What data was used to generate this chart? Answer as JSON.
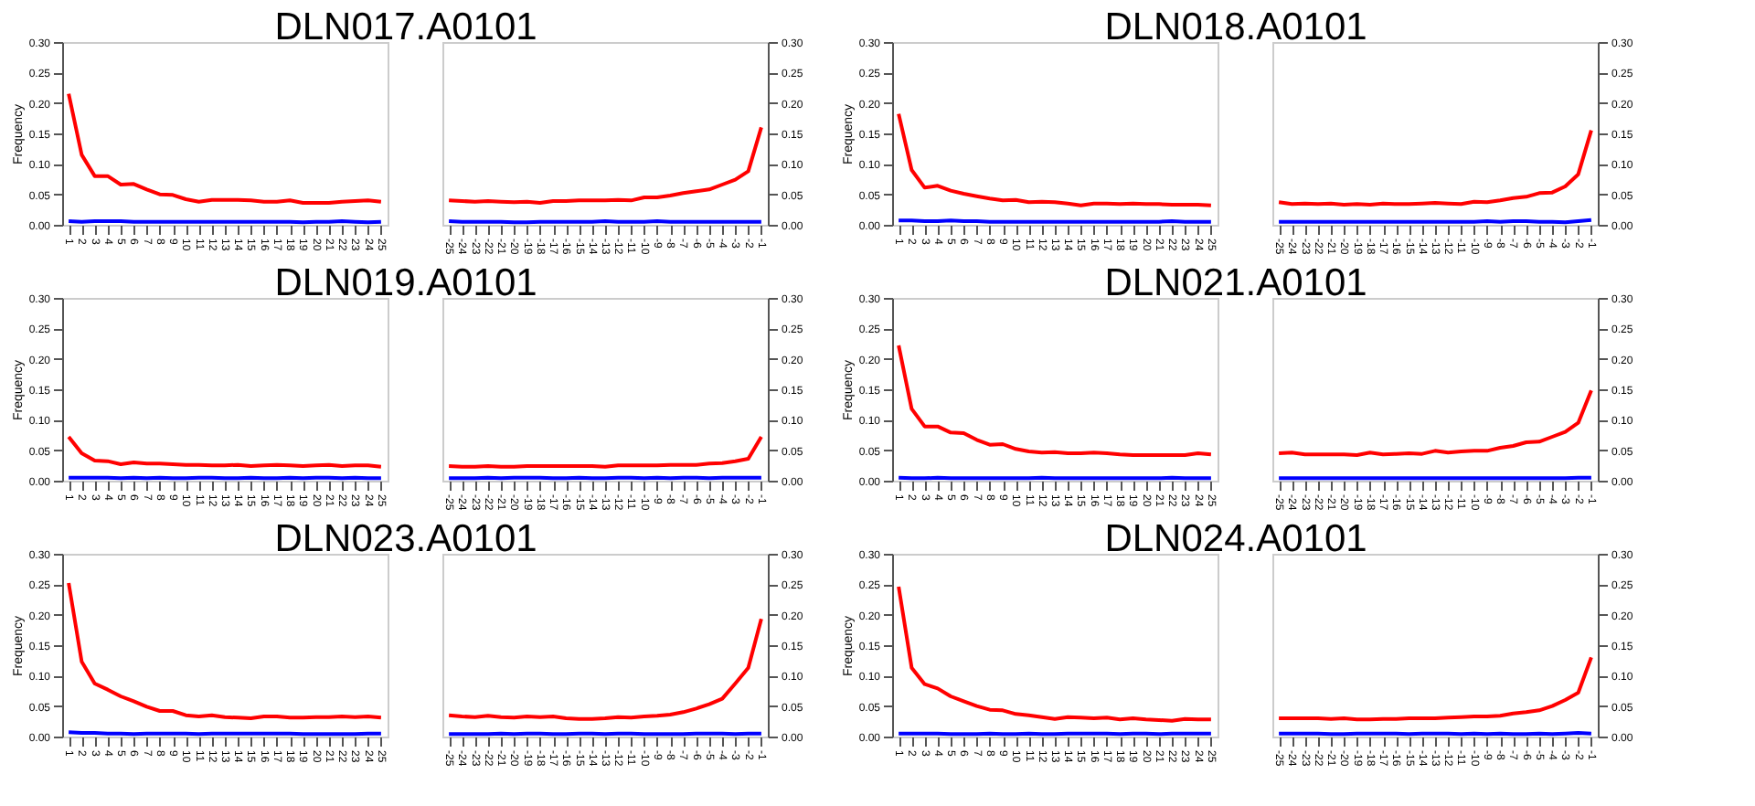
{
  "chart_data": [
    {
      "type": "line",
      "title": "DLN017.A0101",
      "ylabel": "Frequency",
      "categories": [
        "1",
        "2",
        "3",
        "4",
        "5",
        "6",
        "7",
        "8",
        "9",
        "10",
        "11",
        "12",
        "13",
        "14",
        "15",
        "16",
        "17",
        "18",
        "19",
        "20",
        "21",
        "22",
        "23",
        "24",
        "25"
      ],
      "ylim": [
        0,
        0.3
      ],
      "yticks": [
        {
          "value": 0,
          "label": "0.00"
        },
        0.05,
        {
          "value": 0.1,
          "label": "0.10"
        },
        0.15,
        {
          "value": 0.2,
          "label": "0.20"
        },
        0.25,
        {
          "value": 0.3,
          "label": "0.30"
        }
      ],
      "series": [
        {
          "color": "#0000ff",
          "values": [
            0.006,
            0.005,
            0.006,
            0.006,
            0.006,
            0.005,
            0.005,
            0.005,
            0.005,
            0.005,
            0.005,
            0.005,
            0.005,
            0.005,
            0.005,
            0.005,
            0.005,
            0.005,
            0.004,
            0.005,
            0.005,
            0.006,
            0.005,
            0.004,
            0.005
          ]
        },
        {
          "color": "#ff0000",
          "values": [
            0.215,
            0.115,
            0.08,
            0.08,
            0.066,
            0.067,
            0.058,
            0.05,
            0.049,
            0.042,
            0.038,
            0.041,
            0.041,
            0.041,
            0.04,
            0.038,
            0.038,
            0.04,
            0.036,
            0.036,
            0.036,
            0.038,
            0.039,
            0.04,
            0.038
          ]
        }
      ]
    },
    {
      "type": "line",
      "categories": [
        "-25",
        "-24",
        "-23",
        "-22",
        "-21",
        "-20",
        "-19",
        "-18",
        "-17",
        "-16",
        "-15",
        "-14",
        "-13",
        "-12",
        "-11",
        "-10",
        "-9",
        "-8",
        "-7",
        "-6",
        "-5",
        "-4",
        "-3",
        "-2",
        "-1"
      ],
      "ylim": [
        0,
        0.3
      ],
      "yticks": [
        {
          "value": 0,
          "label": "0.00"
        },
        0.05,
        {
          "value": 0.1,
          "label": "0.10"
        },
        0.15,
        {
          "value": 0.2,
          "label": "0.20"
        },
        0.25,
        {
          "value": 0.3,
          "label": "0.30"
        }
      ],
      "series": [
        {
          "color": "#0000ff",
          "values": [
            0.006,
            0.005,
            0.005,
            0.005,
            0.005,
            0.004,
            0.004,
            0.005,
            0.005,
            0.005,
            0.005,
            0.005,
            0.006,
            0.005,
            0.005,
            0.005,
            0.006,
            0.005,
            0.005,
            0.005,
            0.005,
            0.005,
            0.005,
            0.005,
            0.005
          ]
        },
        {
          "color": "#ff0000",
          "values": [
            0.04,
            0.039,
            0.038,
            0.039,
            0.038,
            0.037,
            0.038,
            0.036,
            0.039,
            0.039,
            0.04,
            0.04,
            0.04,
            0.041,
            0.04,
            0.045,
            0.045,
            0.048,
            0.052,
            0.055,
            0.058,
            0.066,
            0.074,
            0.088,
            0.16
          ]
        }
      ]
    },
    {
      "type": "line",
      "title": "DLN018.A0101",
      "ylabel": "Frequency",
      "categories": [
        "1",
        "2",
        "3",
        "4",
        "5",
        "6",
        "7",
        "8",
        "9",
        "10",
        "11",
        "12",
        "13",
        "14",
        "15",
        "16",
        "17",
        "18",
        "19",
        "20",
        "21",
        "22",
        "23",
        "24",
        "25"
      ],
      "ylim": [
        0,
        0.3
      ],
      "yticks": [
        {
          "value": 0,
          "label": "0.00"
        },
        0.05,
        {
          "value": 0.1,
          "label": "0.10"
        },
        0.15,
        {
          "value": 0.2,
          "label": "0.20"
        },
        0.25,
        {
          "value": 0.3,
          "label": "0.30"
        }
      ],
      "series": [
        {
          "color": "#0000ff",
          "values": [
            0.007,
            0.007,
            0.006,
            0.006,
            0.007,
            0.006,
            0.006,
            0.005,
            0.005,
            0.005,
            0.005,
            0.005,
            0.005,
            0.005,
            0.005,
            0.005,
            0.005,
            0.005,
            0.005,
            0.005,
            0.005,
            0.006,
            0.005,
            0.005,
            0.005
          ]
        },
        {
          "color": "#ff0000",
          "values": [
            0.182,
            0.09,
            0.061,
            0.064,
            0.056,
            0.051,
            0.047,
            0.043,
            0.04,
            0.041,
            0.037,
            0.038,
            0.037,
            0.035,
            0.032,
            0.035,
            0.035,
            0.034,
            0.035,
            0.034,
            0.034,
            0.033,
            0.033,
            0.033,
            0.032
          ]
        }
      ]
    },
    {
      "type": "line",
      "categories": [
        "-25",
        "-24",
        "-23",
        "-22",
        "-21",
        "-20",
        "-19",
        "-18",
        "-17",
        "-16",
        "-15",
        "-14",
        "-13",
        "-12",
        "-11",
        "-10",
        "-9",
        "-8",
        "-7",
        "-6",
        "-5",
        "-4",
        "-3",
        "-2",
        "-1"
      ],
      "ylim": [
        0,
        0.3
      ],
      "yticks": [
        {
          "value": 0,
          "label": "0.00"
        },
        0.05,
        {
          "value": 0.1,
          "label": "0.10"
        },
        0.15,
        {
          "value": 0.2,
          "label": "0.20"
        },
        0.25,
        {
          "value": 0.3,
          "label": "0.30"
        }
      ],
      "series": [
        {
          "color": "#0000ff",
          "values": [
            0.005,
            0.005,
            0.005,
            0.005,
            0.005,
            0.005,
            0.005,
            0.005,
            0.005,
            0.005,
            0.005,
            0.005,
            0.005,
            0.005,
            0.005,
            0.005,
            0.006,
            0.005,
            0.006,
            0.006,
            0.005,
            0.005,
            0.004,
            0.006,
            0.008
          ]
        },
        {
          "color": "#ff0000",
          "values": [
            0.037,
            0.034,
            0.035,
            0.034,
            0.035,
            0.033,
            0.034,
            0.033,
            0.035,
            0.034,
            0.034,
            0.035,
            0.036,
            0.035,
            0.034,
            0.038,
            0.037,
            0.04,
            0.044,
            0.046,
            0.052,
            0.053,
            0.063,
            0.083,
            0.155
          ]
        }
      ]
    },
    {
      "type": "line",
      "title": "DLN019.A0101",
      "ylabel": "Frequency",
      "categories": [
        "1",
        "2",
        "3",
        "4",
        "5",
        "6",
        "7",
        "8",
        "9",
        "10",
        "11",
        "12",
        "13",
        "14",
        "15",
        "16",
        "17",
        "18",
        "19",
        "20",
        "21",
        "22",
        "23",
        "24",
        "25"
      ],
      "ylim": [
        0,
        0.3
      ],
      "yticks": [
        {
          "value": 0,
          "label": "0.00"
        },
        0.05,
        {
          "value": 0.1,
          "label": "0.10"
        },
        0.15,
        {
          "value": 0.2,
          "label": "0.20"
        },
        0.25,
        {
          "value": 0.3,
          "label": "0.30"
        }
      ],
      "series": [
        {
          "color": "#0000ff",
          "values": [
            0.005,
            0.005,
            0.005,
            0.005,
            0.004,
            0.005,
            0.004,
            0.005,
            0.004,
            0.004,
            0.005,
            0.005,
            0.004,
            0.004,
            0.005,
            0.004,
            0.004,
            0.005,
            0.004,
            0.005,
            0.005,
            0.004,
            0.005,
            0.004,
            0.004
          ]
        },
        {
          "color": "#ff0000",
          "values": [
            0.072,
            0.045,
            0.033,
            0.032,
            0.027,
            0.03,
            0.028,
            0.028,
            0.027,
            0.026,
            0.026,
            0.025,
            0.025,
            0.026,
            0.024,
            0.025,
            0.026,
            0.025,
            0.024,
            0.025,
            0.026,
            0.024,
            0.025,
            0.025,
            0.023
          ]
        }
      ]
    },
    {
      "type": "line",
      "categories": [
        "-25",
        "-24",
        "-23",
        "-22",
        "-21",
        "-20",
        "-19",
        "-18",
        "-17",
        "-16",
        "-15",
        "-14",
        "-13",
        "-12",
        "-11",
        "-10",
        "-9",
        "-8",
        "-7",
        "-6",
        "-5",
        "-4",
        "-3",
        "-2",
        "-1"
      ],
      "ylim": [
        0,
        0.3
      ],
      "yticks": [
        {
          "value": 0,
          "label": "0.00"
        },
        0.05,
        {
          "value": 0.1,
          "label": "0.10"
        },
        0.15,
        {
          "value": 0.2,
          "label": "0.20"
        },
        0.25,
        {
          "value": 0.3,
          "label": "0.30"
        }
      ],
      "series": [
        {
          "color": "#0000ff",
          "values": [
            0.004,
            0.004,
            0.004,
            0.005,
            0.004,
            0.005,
            0.005,
            0.005,
            0.004,
            0.004,
            0.005,
            0.004,
            0.004,
            0.005,
            0.005,
            0.004,
            0.005,
            0.004,
            0.005,
            0.005,
            0.004,
            0.005,
            0.005,
            0.005,
            0.005
          ]
        },
        {
          "color": "#ff0000",
          "values": [
            0.024,
            0.023,
            0.023,
            0.024,
            0.023,
            0.023,
            0.024,
            0.024,
            0.024,
            0.024,
            0.024,
            0.024,
            0.023,
            0.025,
            0.025,
            0.025,
            0.025,
            0.026,
            0.026,
            0.026,
            0.028,
            0.029,
            0.032,
            0.036,
            0.072
          ]
        }
      ]
    },
    {
      "type": "line",
      "title": "DLN021.A0101",
      "ylabel": "Frequency",
      "categories": [
        "1",
        "2",
        "3",
        "4",
        "5",
        "6",
        "7",
        "8",
        "9",
        "10",
        "11",
        "12",
        "13",
        "14",
        "15",
        "16",
        "17",
        "18",
        "19",
        "20",
        "21",
        "22",
        "23",
        "24",
        "25"
      ],
      "ylim": [
        0,
        0.3
      ],
      "yticks": [
        {
          "value": 0,
          "label": "0.00"
        },
        0.05,
        {
          "value": 0.1,
          "label": "0.10"
        },
        0.15,
        {
          "value": 0.2,
          "label": "0.20"
        },
        0.25,
        {
          "value": 0.3,
          "label": "0.30"
        }
      ],
      "series": [
        {
          "color": "#0000ff",
          "values": [
            0.005,
            0.004,
            0.004,
            0.005,
            0.004,
            0.004,
            0.004,
            0.004,
            0.004,
            0.004,
            0.004,
            0.005,
            0.004,
            0.004,
            0.004,
            0.004,
            0.004,
            0.004,
            0.004,
            0.004,
            0.004,
            0.005,
            0.004,
            0.004,
            0.004
          ]
        },
        {
          "color": "#ff0000",
          "values": [
            0.222,
            0.118,
            0.089,
            0.089,
            0.079,
            0.078,
            0.067,
            0.059,
            0.06,
            0.052,
            0.048,
            0.046,
            0.047,
            0.045,
            0.045,
            0.046,
            0.045,
            0.043,
            0.042,
            0.042,
            0.042,
            0.042,
            0.042,
            0.045,
            0.043
          ]
        }
      ]
    },
    {
      "type": "line",
      "categories": [
        "-25",
        "-24",
        "-23",
        "-22",
        "-21",
        "-20",
        "-19",
        "-18",
        "-17",
        "-16",
        "-15",
        "-14",
        "-13",
        "-12",
        "-11",
        "-10",
        "-9",
        "-8",
        "-7",
        "-6",
        "-5",
        "-4",
        "-3",
        "-2",
        "-1"
      ],
      "ylim": [
        0,
        0.3
      ],
      "yticks": [
        {
          "value": 0,
          "label": "0.00"
        },
        0.05,
        {
          "value": 0.1,
          "label": "0.10"
        },
        0.15,
        {
          "value": 0.2,
          "label": "0.20"
        },
        0.25,
        {
          "value": 0.3,
          "label": "0.30"
        }
      ],
      "series": [
        {
          "color": "#0000ff",
          "values": [
            0.004,
            0.004,
            0.004,
            0.004,
            0.004,
            0.004,
            0.004,
            0.004,
            0.004,
            0.004,
            0.004,
            0.004,
            0.004,
            0.004,
            0.004,
            0.004,
            0.004,
            0.004,
            0.004,
            0.004,
            0.004,
            0.004,
            0.004,
            0.005,
            0.005
          ]
        },
        {
          "color": "#ff0000",
          "values": [
            0.045,
            0.046,
            0.043,
            0.043,
            0.043,
            0.043,
            0.042,
            0.046,
            0.043,
            0.044,
            0.045,
            0.044,
            0.049,
            0.046,
            0.048,
            0.049,
            0.049,
            0.054,
            0.057,
            0.063,
            0.064,
            0.072,
            0.08,
            0.095,
            0.148
          ]
        }
      ]
    },
    {
      "type": "line",
      "title": "DLN023.A0101",
      "ylabel": "Frequency",
      "categories": [
        "1",
        "2",
        "3",
        "4",
        "5",
        "6",
        "7",
        "8",
        "9",
        "10",
        "11",
        "12",
        "13",
        "14",
        "15",
        "16",
        "17",
        "18",
        "19",
        "20",
        "21",
        "22",
        "23",
        "24",
        "25"
      ],
      "ylim": [
        0,
        0.3
      ],
      "yticks": [
        {
          "value": 0,
          "label": "0.00"
        },
        0.05,
        {
          "value": 0.1,
          "label": "0.10"
        },
        0.15,
        {
          "value": 0.2,
          "label": "0.20"
        },
        0.25,
        {
          "value": 0.3,
          "label": "0.30"
        }
      ],
      "series": [
        {
          "color": "#0000ff",
          "values": [
            0.007,
            0.006,
            0.006,
            0.005,
            0.005,
            0.004,
            0.005,
            0.005,
            0.005,
            0.005,
            0.004,
            0.005,
            0.005,
            0.005,
            0.005,
            0.005,
            0.005,
            0.005,
            0.004,
            0.004,
            0.004,
            0.004,
            0.004,
            0.005,
            0.005
          ]
        },
        {
          "color": "#ff0000",
          "values": [
            0.252,
            0.123,
            0.087,
            0.077,
            0.066,
            0.058,
            0.049,
            0.042,
            0.042,
            0.035,
            0.033,
            0.035,
            0.032,
            0.031,
            0.03,
            0.033,
            0.033,
            0.031,
            0.031,
            0.032,
            0.032,
            0.033,
            0.032,
            0.033,
            0.031
          ]
        }
      ]
    },
    {
      "type": "line",
      "categories": [
        "-25",
        "-24",
        "-23",
        "-22",
        "-21",
        "-20",
        "-19",
        "-18",
        "-17",
        "-16",
        "-15",
        "-14",
        "-13",
        "-12",
        "-11",
        "-10",
        "-9",
        "-8",
        "-7",
        "-6",
        "-5",
        "-4",
        "-3",
        "-2",
        "-1"
      ],
      "ylim": [
        0,
        0.3
      ],
      "yticks": [
        {
          "value": 0,
          "label": "0.00"
        },
        0.05,
        {
          "value": 0.1,
          "label": "0.10"
        },
        0.15,
        {
          "value": 0.2,
          "label": "0.20"
        },
        0.25,
        {
          "value": 0.3,
          "label": "0.30"
        }
      ],
      "series": [
        {
          "color": "#0000ff",
          "values": [
            0.004,
            0.004,
            0.004,
            0.004,
            0.005,
            0.004,
            0.005,
            0.005,
            0.004,
            0.004,
            0.005,
            0.005,
            0.004,
            0.005,
            0.005,
            0.004,
            0.004,
            0.004,
            0.004,
            0.005,
            0.005,
            0.005,
            0.004,
            0.005,
            0.005
          ]
        },
        {
          "color": "#ff0000",
          "values": [
            0.035,
            0.033,
            0.032,
            0.034,
            0.032,
            0.031,
            0.033,
            0.032,
            0.033,
            0.03,
            0.029,
            0.029,
            0.03,
            0.032,
            0.031,
            0.033,
            0.034,
            0.036,
            0.04,
            0.046,
            0.053,
            0.062,
            0.087,
            0.113,
            0.193
          ]
        }
      ]
    },
    {
      "type": "line",
      "title": "DLN024.A0101",
      "ylabel": "Frequency",
      "categories": [
        "1",
        "2",
        "3",
        "4",
        "5",
        "6",
        "7",
        "8",
        "9",
        "10",
        "11",
        "12",
        "13",
        "14",
        "15",
        "16",
        "17",
        "18",
        "19",
        "20",
        "21",
        "22",
        "23",
        "24",
        "25"
      ],
      "ylim": [
        0,
        0.3
      ],
      "yticks": [
        {
          "value": 0,
          "label": "0.00"
        },
        0.05,
        {
          "value": 0.1,
          "label": "0.10"
        },
        0.15,
        {
          "value": 0.2,
          "label": "0.20"
        },
        0.25,
        {
          "value": 0.3,
          "label": "0.30"
        }
      ],
      "series": [
        {
          "color": "#0000ff",
          "values": [
            0.005,
            0.005,
            0.005,
            0.005,
            0.004,
            0.004,
            0.004,
            0.005,
            0.004,
            0.004,
            0.005,
            0.004,
            0.004,
            0.005,
            0.005,
            0.005,
            0.005,
            0.004,
            0.005,
            0.005,
            0.004,
            0.005,
            0.005,
            0.005,
            0.005
          ]
        },
        {
          "color": "#ff0000",
          "values": [
            0.246,
            0.113,
            0.086,
            0.079,
            0.066,
            0.058,
            0.05,
            0.044,
            0.043,
            0.037,
            0.035,
            0.032,
            0.029,
            0.032,
            0.031,
            0.03,
            0.031,
            0.028,
            0.03,
            0.028,
            0.027,
            0.026,
            0.029,
            0.028,
            0.028
          ]
        }
      ]
    },
    {
      "type": "line",
      "categories": [
        "-25",
        "-24",
        "-23",
        "-22",
        "-21",
        "-20",
        "-19",
        "-18",
        "-17",
        "-16",
        "-15",
        "-14",
        "-13",
        "-12",
        "-11",
        "-10",
        "-9",
        "-8",
        "-7",
        "-6",
        "-5",
        "-4",
        "-3",
        "-2",
        "-1"
      ],
      "ylim": [
        0,
        0.3
      ],
      "yticks": [
        {
          "value": 0,
          "label": "0.00"
        },
        0.05,
        {
          "value": 0.1,
          "label": "0.10"
        },
        0.15,
        {
          "value": 0.2,
          "label": "0.20"
        },
        0.25,
        {
          "value": 0.3,
          "label": "0.30"
        }
      ],
      "series": [
        {
          "color": "#0000ff",
          "values": [
            0.005,
            0.005,
            0.005,
            0.005,
            0.004,
            0.004,
            0.005,
            0.005,
            0.005,
            0.005,
            0.004,
            0.005,
            0.005,
            0.005,
            0.004,
            0.005,
            0.004,
            0.005,
            0.004,
            0.004,
            0.005,
            0.004,
            0.005,
            0.006,
            0.005
          ]
        },
        {
          "color": "#ff0000",
          "values": [
            0.03,
            0.03,
            0.03,
            0.03,
            0.029,
            0.03,
            0.028,
            0.028,
            0.029,
            0.029,
            0.03,
            0.03,
            0.03,
            0.031,
            0.032,
            0.033,
            0.033,
            0.034,
            0.038,
            0.04,
            0.043,
            0.05,
            0.06,
            0.072,
            0.13
          ]
        }
      ]
    }
  ]
}
